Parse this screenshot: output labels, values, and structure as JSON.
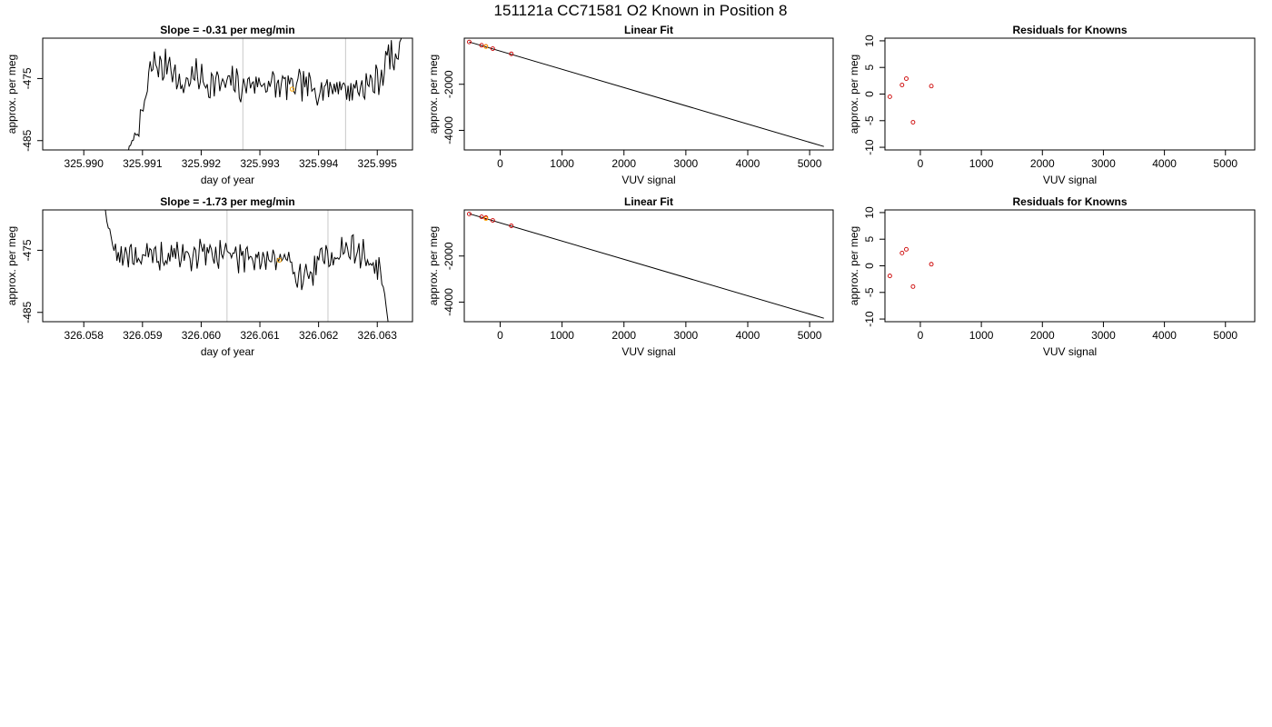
{
  "figure": {
    "title": "151121a     CC71581   O2 Known in Position  8",
    "series_color": "#000000",
    "known_point_color": "#cc0000",
    "highlight_color": "#ffa500",
    "marker_line_color": "#c8c8c8"
  },
  "chart_data": [
    {
      "type": "line",
      "title": "Slope =  -0.31  per meg/min",
      "xlabel": "day of year",
      "ylabel": "approx. per meg",
      "xlim": [
        325.9893,
        325.9956
      ],
      "ylim": [
        -486.5,
        -468.5
      ],
      "xticks": [
        "325.990",
        "325.991",
        "325.992",
        "325.993",
        "325.994",
        "325.995"
      ],
      "xtick_values": [
        325.99,
        325.991,
        325.992,
        325.993,
        325.994,
        325.995
      ],
      "yticks": [
        "-485",
        "-475"
      ],
      "ytick_values": [
        -485,
        -475
      ],
      "vertical_markers": [
        325.99271,
        325.99446
      ],
      "highlight_points": [
        {
          "x": 325.99355,
          "y": -476.7
        }
      ],
      "x_start": 325.99075,
      "x_end": 325.9955,
      "noise_seed": 7,
      "series": [
        {
          "values_x": [
            325.99075,
            325.99085,
            325.99095,
            325.99105,
            325.99115,
            325.99125,
            325.99135,
            325.99145,
            325.99155,
            325.99165,
            325.9918,
            325.99195,
            325.9921,
            325.99225,
            325.9924,
            325.99255,
            325.9927,
            325.99285,
            325.993,
            325.99315,
            325.9933,
            325.99345,
            325.9936,
            325.99375,
            325.9939,
            325.99405,
            325.9942,
            325.99435,
            325.9945,
            325.99465,
            325.9948,
            325.99495,
            325.9951,
            325.9952,
            325.9953,
            325.9954,
            325.9955
          ],
          "values_y": [
            -487,
            -484.5,
            -483,
            -478.5,
            -473,
            -472.5,
            -474,
            -471.5,
            -474.5,
            -476.5,
            -475,
            -474.5,
            -476,
            -475.5,
            -476.3,
            -475.2,
            -476.8,
            -475.4,
            -476,
            -475.6,
            -476.4,
            -475.9,
            -476.7,
            -475.8,
            -477,
            -476.2,
            -476.6,
            -475.7,
            -477.1,
            -476.4,
            -476.2,
            -475.6,
            -474.2,
            -470.5,
            -473,
            -468.5,
            -466
          ]
        }
      ]
    },
    {
      "type": "scatter",
      "title": "Linear Fit",
      "xlabel": "VUV signal",
      "ylabel": "approx. per meg",
      "xlim": [
        -580,
        5380
      ],
      "ylim": [
        -4850,
        0
      ],
      "xticks": [
        "0",
        "1000",
        "2000",
        "3000",
        "4000",
        "5000"
      ],
      "xtick_values": [
        0,
        1000,
        2000,
        3000,
        4000,
        5000
      ],
      "yticks": [
        "-4000",
        "-2000"
      ],
      "ytick_values": [
        -4000,
        -2000
      ],
      "points": [
        {
          "x": -500,
          "y": -165
        },
        {
          "x": -300,
          "y": -310
        },
        {
          "x": -230,
          "y": -360
        },
        {
          "x": -120,
          "y": -455
        },
        {
          "x": 180,
          "y": -680
        }
      ],
      "highlight_points": [
        {
          "x": -230,
          "y": -370
        }
      ],
      "fit_line": {
        "x": [
          -500,
          5230
        ],
        "y": [
          -165,
          -4700
        ]
      }
    },
    {
      "type": "scatter",
      "title": "Residuals for Knowns",
      "xlabel": "VUV signal",
      "ylabel": "approx. per meg",
      "xlim": [
        -580,
        5480
      ],
      "ylim": [
        -10.5,
        10.5
      ],
      "xticks": [
        "0",
        "1000",
        "2000",
        "3000",
        "4000",
        "5000"
      ],
      "xtick_values": [
        0,
        1000,
        2000,
        3000,
        4000,
        5000
      ],
      "yticks": [
        "-10",
        "-5",
        "0",
        "5",
        "10"
      ],
      "ytick_values": [
        -10,
        -5,
        0,
        5,
        10
      ],
      "points": [
        {
          "x": -500,
          "y": -0.5
        },
        {
          "x": -300,
          "y": 1.7
        },
        {
          "x": -230,
          "y": 2.9
        },
        {
          "x": -120,
          "y": -5.3
        },
        {
          "x": 180,
          "y": 1.5
        }
      ]
    },
    {
      "type": "line",
      "title": "Slope =  -1.73  per meg/min",
      "xlabel": "day of year",
      "ylabel": "approx. per meg",
      "xlim": [
        326.0573,
        326.0636
      ],
      "ylim": [
        -486.5,
        -468.5
      ],
      "xticks": [
        "326.058",
        "326.059",
        "326.060",
        "326.061",
        "326.062",
        "326.063"
      ],
      "xtick_values": [
        326.058,
        326.059,
        326.06,
        326.061,
        326.062,
        326.063
      ],
      "yticks": [
        "-485",
        "-475"
      ],
      "ytick_values": [
        -485,
        -475
      ],
      "vertical_markers": [
        326.06044,
        326.06216
      ],
      "highlight_points": [
        {
          "x": 326.06133,
          "y": -476.6
        }
      ],
      "x_start": 326.05832,
      "x_end": 326.0632,
      "noise_seed": 19,
      "series": [
        {
          "values_x": [
            326.05832,
            326.0584,
            326.0585,
            326.0586,
            326.0588,
            326.059,
            326.0592,
            326.0594,
            326.0596,
            326.0598,
            326.06,
            326.0602,
            326.0604,
            326.0606,
            326.0608,
            326.061,
            326.0612,
            326.0614,
            326.0616,
            326.0618,
            326.062,
            326.0622,
            326.0624,
            326.0626,
            326.0628,
            326.0629,
            326.063,
            326.0631,
            326.0632
          ],
          "values_y": [
            -466,
            -470.5,
            -474,
            -476.5,
            -475,
            -476.8,
            -475.6,
            -476.5,
            -475.4,
            -476.2,
            -475.3,
            -475.8,
            -475.1,
            -476.2,
            -475.5,
            -476.1,
            -476.4,
            -476.9,
            -478.2,
            -479.4,
            -477.2,
            -475.6,
            -475.1,
            -474.8,
            -476.1,
            -477.4,
            -477.8,
            -480.5,
            -488
          ]
        }
      ]
    },
    {
      "type": "scatter",
      "title": "Linear Fit",
      "xlabel": "VUV signal",
      "ylabel": "approx. per meg",
      "xlim": [
        -580,
        5380
      ],
      "ylim": [
        -4850,
        0
      ],
      "xticks": [
        "0",
        "1000",
        "2000",
        "3000",
        "4000",
        "5000"
      ],
      "xtick_values": [
        0,
        1000,
        2000,
        3000,
        4000,
        5000
      ],
      "yticks": [
        "-4000",
        "-2000"
      ],
      "ytick_values": [
        -4000,
        -2000
      ],
      "points": [
        {
          "x": -500,
          "y": -175
        },
        {
          "x": -300,
          "y": -300
        },
        {
          "x": -230,
          "y": -335
        },
        {
          "x": -120,
          "y": -455
        },
        {
          "x": 180,
          "y": -690
        }
      ],
      "highlight_points": [
        {
          "x": -230,
          "y": -380
        }
      ],
      "fit_line": {
        "x": [
          -500,
          5230
        ],
        "y": [
          -165,
          -4700
        ]
      }
    },
    {
      "type": "scatter",
      "title": "Residuals for Knowns",
      "xlabel": "VUV signal",
      "ylabel": "approx. per meg",
      "xlim": [
        -580,
        5480
      ],
      "ylim": [
        -10.5,
        10.5
      ],
      "xticks": [
        "0",
        "1000",
        "2000",
        "3000",
        "4000",
        "5000"
      ],
      "xtick_values": [
        0,
        1000,
        2000,
        3000,
        4000,
        5000
      ],
      "yticks": [
        "-10",
        "-5",
        "0",
        "5",
        "10"
      ],
      "ytick_values": [
        -10,
        -5,
        0,
        5,
        10
      ],
      "points": [
        {
          "x": -500,
          "y": -1.9
        },
        {
          "x": -300,
          "y": 2.4
        },
        {
          "x": -230,
          "y": 3.1
        },
        {
          "x": -120,
          "y": -3.9
        },
        {
          "x": 180,
          "y": 0.3
        }
      ]
    }
  ]
}
